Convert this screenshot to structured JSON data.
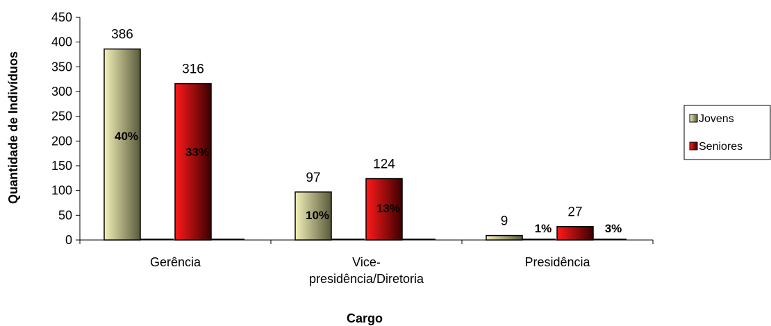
{
  "chart_data": {
    "type": "bar",
    "categories": [
      "Gerência",
      "Vice-presidência/Diretoria",
      "Presidência"
    ],
    "category_lines": [
      [
        "Gerência"
      ],
      [
        "Vice-",
        "presidência/Diretoria"
      ],
      [
        "Presidência"
      ]
    ],
    "series": [
      {
        "name": "Jovens",
        "values": [
          386,
          97,
          9
        ],
        "percent_labels": [
          "40%",
          "10%",
          "1%"
        ],
        "color_light": "#f2f0b8",
        "color_dark": "#5a5a3c"
      },
      {
        "name": "Seniores",
        "values": [
          316,
          124,
          27
        ],
        "percent_labels": [
          "33%",
          "13%",
          "3%"
        ],
        "color_light": "#ff1a1a",
        "color_dark": "#3c0000"
      }
    ],
    "xlabel": "Cargo",
    "ylabel": "Quantidade de Indivíduos",
    "ylim": [
      0,
      450
    ],
    "yticks": [
      0,
      50,
      100,
      150,
      200,
      250,
      300,
      350,
      400,
      450
    ],
    "grid": false,
    "legend_position": "right"
  }
}
